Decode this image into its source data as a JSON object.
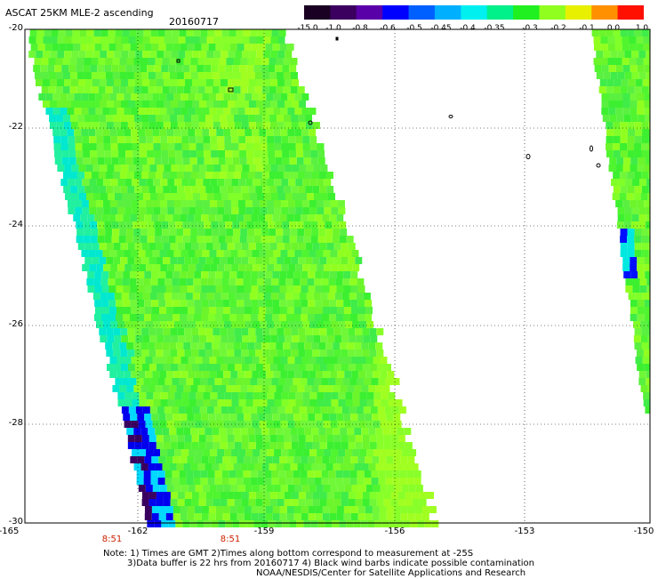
{
  "header": {
    "title": "ASCAT 25KM MLE-2 ascending",
    "date": "20160717"
  },
  "colorbar": {
    "tick_labels": [
      "-15.0",
      "-1.0",
      "-0.8",
      "-0.6",
      "-0.5",
      "-0.45",
      "-0.4",
      "-0.35",
      "-0.3",
      "-0.2",
      "-0.1",
      "0.0",
      "1.0"
    ],
    "colors": [
      "#1a0022",
      "#3b005f",
      "#5a00a8",
      "#0000ff",
      "#0060ff",
      "#00b0ff",
      "#00f0f0",
      "#00f08a",
      "#20f020",
      "#90ff20",
      "#e8f000",
      "#ff9000",
      "#ff1000"
    ]
  },
  "axes": {
    "lat_labels": [
      "-20",
      "-22",
      "-24",
      "-26",
      "-28",
      "-30"
    ],
    "lon_labels": [
      "-165",
      "-162",
      "-159",
      "-156",
      "-153",
      "-150"
    ],
    "time_labels": [
      "8:51",
      "8:51"
    ]
  },
  "notes": [
    "Note: 1) Times are GMT 2)Times along bottom correspond to measurement at -25S",
    "3)Data buffer is 22 hrs from 20160717 4) Black wind barbs indicate possible contamination",
    "NOAA/NESDIS/Center for Satellite Applications and Research"
  ]
}
